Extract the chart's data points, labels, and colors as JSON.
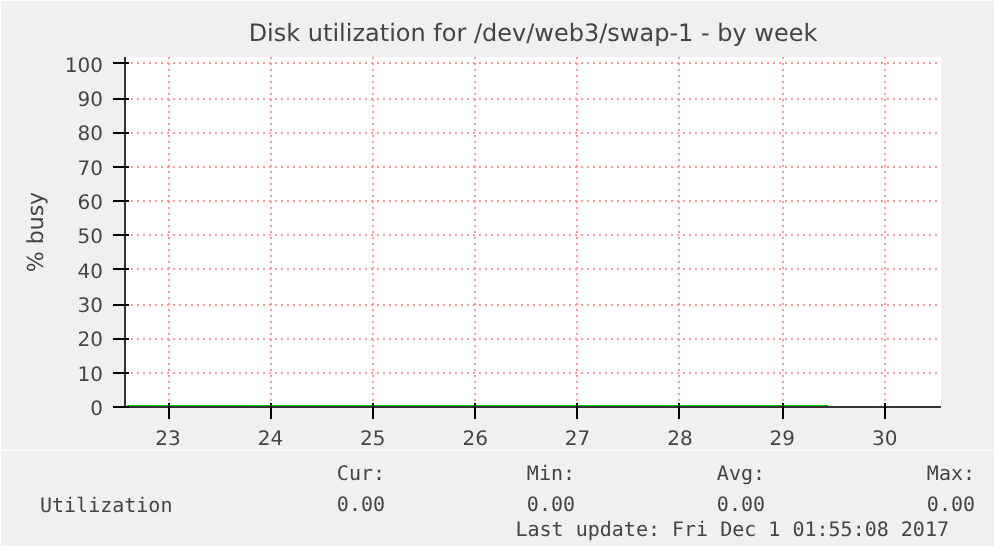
{
  "chart_data": {
    "type": "line",
    "title": "Disk utilization for /dev/web3/swap-1 - by week",
    "ylabel": "% busy",
    "x": [
      22.6,
      29.45
    ],
    "series": [
      {
        "name": "Utilization",
        "color": "#00cc00",
        "values": [
          0,
          0
        ]
      }
    ],
    "xlim": [
      22.58,
      30.55
    ],
    "xticks": [
      23,
      24,
      25,
      26,
      27,
      28,
      29,
      30
    ],
    "ylim": [
      0,
      102
    ],
    "yticks": [
      0,
      10,
      20,
      30,
      40,
      50,
      60,
      70,
      80,
      90,
      100
    ],
    "grid": true,
    "legend": "bottom",
    "marker": "none",
    "line_style": "solid",
    "annotations": [
      "Cur:",
      "0.00",
      "Min:",
      "0.00",
      "Avg:",
      "0.00",
      "Max:",
      "0.00",
      "Last update: Fri Dec  1 01:55:08 2017"
    ]
  }
}
